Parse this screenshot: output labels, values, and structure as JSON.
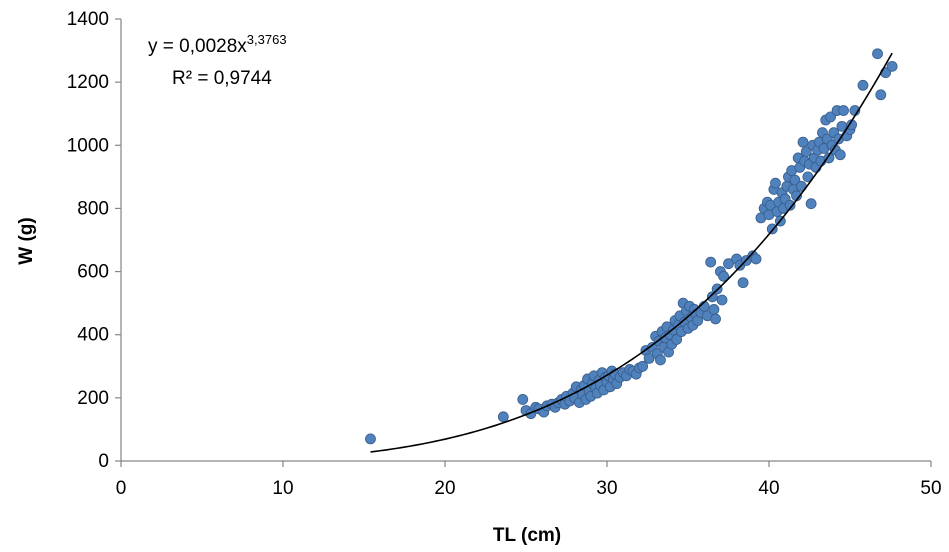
{
  "chart_data": {
    "type": "scatter",
    "xlabel": "TL (cm)",
    "ylabel": "W (g)",
    "xlim": [
      0,
      50
    ],
    "ylim": [
      0,
      1400
    ],
    "xticks": [
      "0",
      "10",
      "20",
      "30",
      "40",
      "50"
    ],
    "yticks": [
      "0",
      "200",
      "400",
      "600",
      "800",
      "1000",
      "1200",
      "1400"
    ],
    "grid": false,
    "legend": "none",
    "equation": {
      "prefix": "y = 0,0028x",
      "exponent": "3,3763",
      "r2": "R² = 0,9744"
    },
    "trendline": {
      "type": "power",
      "a": 0.0028,
      "b": 3.3763,
      "x_from": 15.4,
      "x_to": 47.6
    },
    "marker_color": "#4f81bd",
    "marker_edge": "#385d8a",
    "trend_color": "#000000",
    "points": [
      [
        15.4,
        70
      ],
      [
        23.6,
        140
      ],
      [
        24.8,
        195
      ],
      [
        25.0,
        160
      ],
      [
        25.3,
        150
      ],
      [
        25.6,
        170
      ],
      [
        25.8,
        165
      ],
      [
        26.1,
        155
      ],
      [
        26.3,
        175
      ],
      [
        26.6,
        180
      ],
      [
        26.8,
        170
      ],
      [
        27.0,
        185
      ],
      [
        27.2,
        195
      ],
      [
        27.4,
        180
      ],
      [
        27.5,
        205
      ],
      [
        27.7,
        190
      ],
      [
        27.9,
        215
      ],
      [
        28.0,
        200
      ],
      [
        28.1,
        235
      ],
      [
        28.3,
        185
      ],
      [
        28.4,
        225
      ],
      [
        28.5,
        210
      ],
      [
        28.6,
        240
      ],
      [
        28.7,
        195
      ],
      [
        28.8,
        260
      ],
      [
        28.9,
        220
      ],
      [
        29.0,
        205
      ],
      [
        29.1,
        245
      ],
      [
        29.2,
        270
      ],
      [
        29.3,
        230
      ],
      [
        29.4,
        215
      ],
      [
        29.5,
        255
      ],
      [
        29.6,
        240
      ],
      [
        29.7,
        280
      ],
      [
        29.8,
        225
      ],
      [
        29.9,
        265
      ],
      [
        30.0,
        250
      ],
      [
        30.1,
        270
      ],
      [
        30.2,
        235
      ],
      [
        30.3,
        285
      ],
      [
        30.4,
        260
      ],
      [
        30.5,
        275
      ],
      [
        30.6,
        245
      ],
      [
        30.8,
        265
      ],
      [
        31.0,
        280
      ],
      [
        31.2,
        270
      ],
      [
        31.4,
        290
      ],
      [
        31.6,
        285
      ],
      [
        31.8,
        275
      ],
      [
        32.0,
        295
      ],
      [
        32.2,
        300
      ],
      [
        32.4,
        350
      ],
      [
        32.6,
        325
      ],
      [
        32.8,
        360
      ],
      [
        33.0,
        395
      ],
      [
        33.1,
        340
      ],
      [
        33.2,
        380
      ],
      [
        33.3,
        320
      ],
      [
        33.4,
        410
      ],
      [
        33.5,
        360
      ],
      [
        33.6,
        390
      ],
      [
        33.7,
        425
      ],
      [
        33.8,
        345
      ],
      [
        33.9,
        400
      ],
      [
        34.0,
        370
      ],
      [
        34.1,
        415
      ],
      [
        34.2,
        445
      ],
      [
        34.3,
        385
      ],
      [
        34.4,
        430
      ],
      [
        34.5,
        460
      ],
      [
        34.6,
        410
      ],
      [
        34.7,
        500
      ],
      [
        34.8,
        440
      ],
      [
        34.9,
        475
      ],
      [
        35.0,
        420
      ],
      [
        35.1,
        490
      ],
      [
        35.2,
        455
      ],
      [
        35.3,
        430
      ],
      [
        35.4,
        480
      ],
      [
        35.5,
        465
      ],
      [
        35.6,
        445
      ],
      [
        35.8,
        470
      ],
      [
        36.0,
        490
      ],
      [
        36.2,
        460
      ],
      [
        36.4,
        630
      ],
      [
        36.5,
        520
      ],
      [
        36.6,
        480
      ],
      [
        36.7,
        450
      ],
      [
        36.8,
        545
      ],
      [
        37.0,
        600
      ],
      [
        37.1,
        510
      ],
      [
        37.2,
        585
      ],
      [
        37.5,
        625
      ],
      [
        38.0,
        640
      ],
      [
        38.2,
        620
      ],
      [
        38.4,
        565
      ],
      [
        38.6,
        635
      ],
      [
        39.0,
        650
      ],
      [
        39.2,
        640
      ],
      [
        39.5,
        770
      ],
      [
        39.7,
        800
      ],
      [
        39.9,
        820
      ],
      [
        40.0,
        780
      ],
      [
        40.1,
        810
      ],
      [
        40.2,
        735
      ],
      [
        40.3,
        860
      ],
      [
        40.4,
        880
      ],
      [
        40.5,
        790
      ],
      [
        40.6,
        820
      ],
      [
        40.7,
        760
      ],
      [
        40.8,
        850
      ],
      [
        40.9,
        800
      ],
      [
        41.0,
        830
      ],
      [
        41.1,
        870
      ],
      [
        41.2,
        900
      ],
      [
        41.3,
        810
      ],
      [
        41.4,
        920
      ],
      [
        41.5,
        860
      ],
      [
        41.6,
        890
      ],
      [
        41.7,
        840
      ],
      [
        41.8,
        960
      ],
      [
        41.9,
        930
      ],
      [
        42.0,
        870
      ],
      [
        42.1,
        1010
      ],
      [
        42.2,
        950
      ],
      [
        42.3,
        980
      ],
      [
        42.4,
        900
      ],
      [
        42.5,
        940
      ],
      [
        42.6,
        815
      ],
      [
        42.7,
        1000
      ],
      [
        42.8,
        960
      ],
      [
        42.9,
        930
      ],
      [
        43.0,
        985
      ],
      [
        43.1,
        1010
      ],
      [
        43.2,
        950
      ],
      [
        43.3,
        1040
      ],
      [
        43.4,
        990
      ],
      [
        43.5,
        1080
      ],
      [
        43.6,
        1020
      ],
      [
        43.7,
        960
      ],
      [
        43.8,
        1090
      ],
      [
        43.9,
        1000
      ],
      [
        44.0,
        1040
      ],
      [
        44.1,
        985
      ],
      [
        44.2,
        1110
      ],
      [
        44.3,
        1020
      ],
      [
        44.4,
        970
      ],
      [
        44.5,
        1060
      ],
      [
        44.6,
        1110
      ],
      [
        44.8,
        1030
      ],
      [
        45.0,
        1050
      ],
      [
        45.1,
        1065
      ],
      [
        45.3,
        1110
      ],
      [
        45.8,
        1190
      ],
      [
        46.7,
        1290
      ],
      [
        46.9,
        1160
      ],
      [
        47.2,
        1230
      ],
      [
        47.6,
        1250
      ]
    ]
  }
}
